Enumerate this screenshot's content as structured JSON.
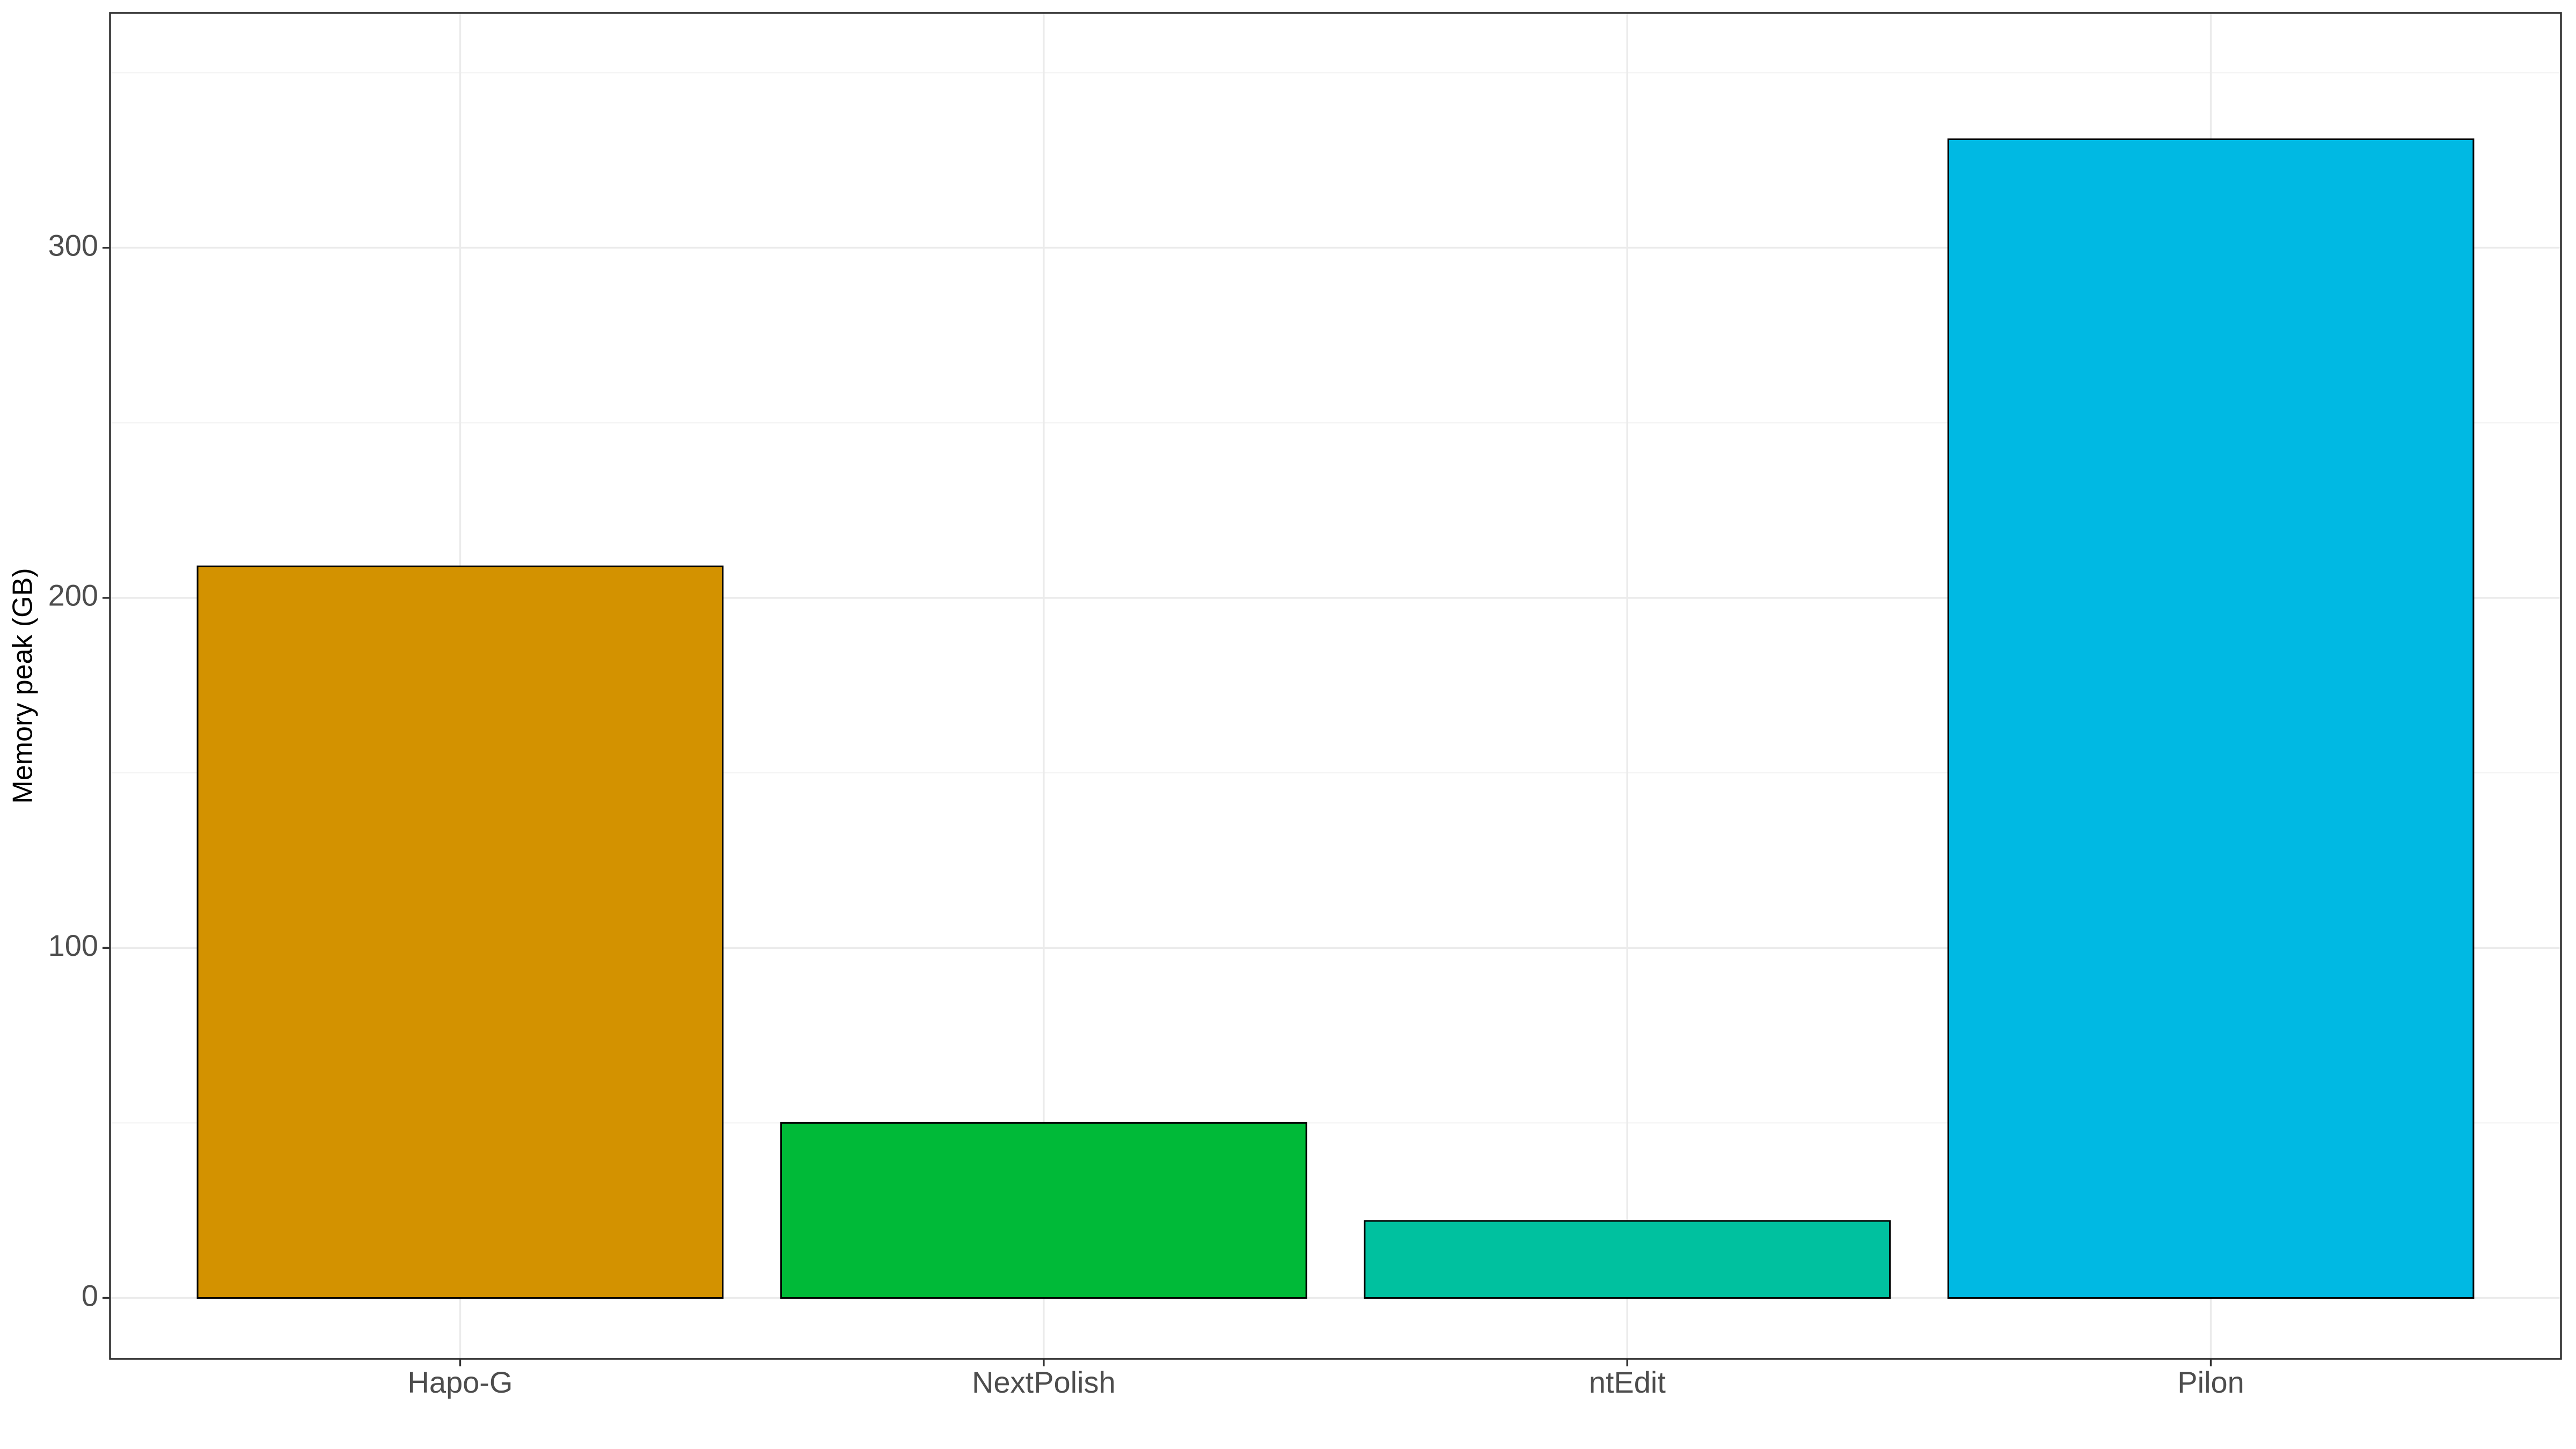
{
  "chart_data": {
    "type": "bar",
    "y_label": "Memory peak (GB)",
    "categories": [
      "Hapo-G",
      "NextPolish",
      "ntEdit",
      "Pilon"
    ],
    "values": [
      209,
      50,
      22,
      331
    ],
    "colors": [
      "#D39200",
      "#00BA38",
      "#00C19F",
      "#00B9E3"
    ],
    "ylim": [
      -17.4,
      367.1
    ],
    "yticks": [
      0,
      100,
      200,
      300
    ],
    "y_minor_grid": [
      50,
      150,
      250,
      350
    ],
    "grid": true
  }
}
